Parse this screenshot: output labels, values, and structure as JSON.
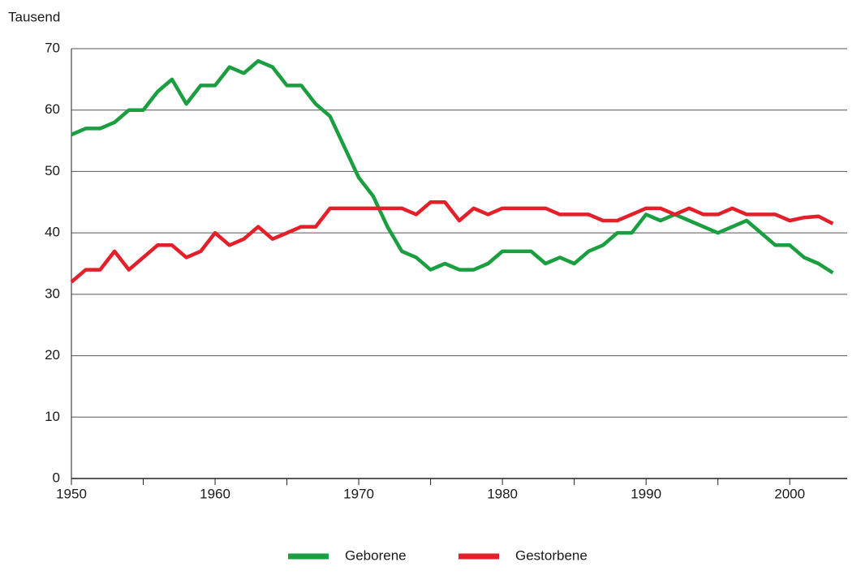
{
  "chart_data": {
    "type": "line",
    "y_label": "Tausend",
    "x": [
      1950,
      1951,
      1952,
      1953,
      1954,
      1955,
      1956,
      1957,
      1958,
      1959,
      1960,
      1961,
      1962,
      1963,
      1964,
      1965,
      1966,
      1967,
      1968,
      1969,
      1970,
      1971,
      1972,
      1973,
      1974,
      1975,
      1976,
      1977,
      1978,
      1979,
      1980,
      1981,
      1982,
      1983,
      1984,
      1985,
      1986,
      1987,
      1988,
      1989,
      1990,
      1991,
      1992,
      1993,
      1994,
      1995,
      1996,
      1997,
      1998,
      1999,
      2000,
      2001,
      2002,
      2003
    ],
    "series": [
      {
        "name": "Geborene",
        "color": "#1a9e3f",
        "values": [
          56,
          57,
          57,
          58,
          60,
          60,
          63,
          65,
          61,
          64,
          64,
          67,
          66,
          68,
          67,
          64,
          64,
          61,
          59,
          54,
          49,
          46,
          41,
          37,
          36,
          34,
          35,
          34,
          34,
          35,
          37,
          37,
          37,
          35,
          36,
          35,
          37,
          38,
          40,
          40,
          43,
          42,
          43,
          42,
          41,
          40,
          41,
          42,
          40,
          38,
          38,
          36,
          35,
          33.5
        ]
      },
      {
        "name": "Gestorbene",
        "color": "#e3202a",
        "values": [
          32,
          34,
          34,
          37,
          34,
          36,
          38,
          38,
          36,
          37,
          40,
          38,
          39,
          41,
          39,
          40,
          41,
          41,
          44,
          44,
          44,
          44,
          44,
          44,
          43,
          45,
          45,
          42,
          44,
          43,
          44,
          44,
          44,
          44,
          43,
          43,
          43,
          42,
          42,
          43,
          44,
          44,
          43,
          44,
          43,
          43,
          44,
          43,
          43,
          43,
          42,
          42.5,
          42.7,
          41.5
        ]
      }
    ],
    "xlim": [
      1950,
      2004
    ],
    "xticks": [
      1950,
      1960,
      1970,
      1980,
      1990,
      2000
    ],
    "xminorticks": [
      1955,
      1965,
      1975,
      1985,
      1995
    ],
    "ylim": [
      0,
      70
    ],
    "yticks": [
      0,
      10,
      20,
      30,
      40,
      50,
      60,
      70
    ],
    "grid": true,
    "legend": "bottom"
  }
}
